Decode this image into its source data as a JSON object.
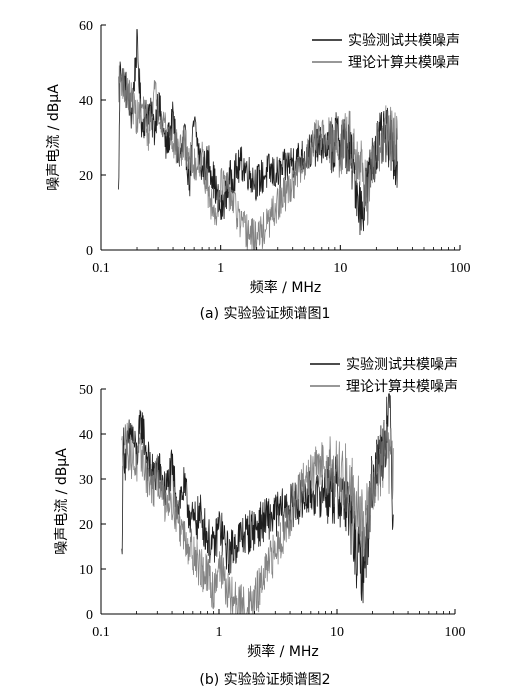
{
  "chart_data": [
    {
      "type": "line",
      "caption": "(a)  实验验证频谱图1",
      "xlabel": "频率 / MHz",
      "ylabel": "噪声电流 / dBμA",
      "xscale": "log",
      "xlim": [
        0.1,
        100
      ],
      "ylim": [
        0,
        60
      ],
      "xticks": [
        "0.1",
        "1",
        "10",
        "100"
      ],
      "yticks": [
        "0",
        "20",
        "40",
        "60"
      ],
      "legend_position": "top-right",
      "grid": false,
      "series": [
        {
          "name": "实验测试共模噪声",
          "color": "#111111",
          "x": [
            0.14,
            0.145,
            0.15,
            0.16,
            0.18,
            0.2,
            0.22,
            0.25,
            0.28,
            0.3,
            0.35,
            0.4,
            0.45,
            0.5,
            0.55,
            0.6,
            0.7,
            0.8,
            0.9,
            1.0,
            1.2,
            1.5,
            2.0,
            2.5,
            3.0,
            4.0,
            5.0,
            6.0,
            7.0,
            8.0,
            10.0,
            12.0,
            15.0,
            17.0,
            20.0,
            25.0,
            30.0
          ],
          "y": [
            14,
            52,
            46,
            44,
            36,
            55,
            33,
            38,
            32,
            40,
            27,
            35,
            23,
            30,
            18,
            34,
            21,
            24,
            17,
            10,
            19,
            23,
            18,
            21,
            20,
            24,
            25,
            27,
            28,
            27,
            30,
            26,
            10,
            18,
            28,
            30,
            24
          ]
        },
        {
          "name": "理论计算共模噪声",
          "color": "#777777",
          "x": [
            0.14,
            0.15,
            0.16,
            0.18,
            0.2,
            0.22,
            0.25,
            0.28,
            0.3,
            0.35,
            0.4,
            0.45,
            0.5,
            0.6,
            0.7,
            0.8,
            0.9,
            1.0,
            1.2,
            1.5,
            1.8,
            2.0,
            2.5,
            3.0,
            4.0,
            5.0,
            6.0,
            7.0,
            8.0,
            10.0,
            12.0,
            15.0,
            17.0,
            20.0,
            25.0,
            30.0
          ],
          "y": [
            44,
            46,
            42,
            40,
            35,
            38,
            31,
            42,
            38,
            33,
            29,
            26,
            28,
            22,
            25,
            14,
            9,
            18,
            15,
            6,
            4,
            3,
            7,
            12,
            18,
            23,
            29,
            32,
            28,
            27,
            30,
            22,
            14,
            26,
            32,
            28
          ]
        }
      ]
    },
    {
      "type": "line",
      "caption": "(b)  实验验证频谱图2",
      "xlabel": "频率 / MHz",
      "ylabel": "噪声电流 / dBμA",
      "xscale": "log",
      "xlim": [
        0.1,
        100
      ],
      "ylim": [
        0,
        50
      ],
      "xticks": [
        "0.1",
        "1",
        "10",
        "100"
      ],
      "yticks": [
        "0",
        "10",
        "20",
        "30",
        "40",
        "50"
      ],
      "legend_position": "top-right",
      "grid": false,
      "series": [
        {
          "name": "实验测试共模噪声",
          "color": "#111111",
          "x": [
            0.15,
            0.155,
            0.16,
            0.18,
            0.2,
            0.22,
            0.25,
            0.28,
            0.3,
            0.35,
            0.4,
            0.45,
            0.5,
            0.6,
            0.7,
            0.8,
            0.9,
            1.0,
            1.2,
            1.5,
            2.0,
            2.5,
            3.0,
            4.0,
            5.0,
            6.0,
            7.0,
            8.0,
            10.0,
            12.0,
            15.0,
            17.0,
            20.0,
            25.0,
            28.0,
            30.0
          ],
          "y": [
            12,
            39,
            34,
            41,
            35,
            43,
            34,
            30,
            33,
            27,
            32,
            24,
            28,
            20,
            22,
            17,
            14,
            20,
            13,
            17,
            19,
            21,
            22,
            24,
            25,
            27,
            26,
            28,
            27,
            25,
            12,
            10,
            30,
            38,
            47,
            20
          ]
        },
        {
          "name": "理论计算共模噪声",
          "color": "#777777",
          "x": [
            0.15,
            0.16,
            0.18,
            0.2,
            0.22,
            0.25,
            0.28,
            0.3,
            0.35,
            0.4,
            0.45,
            0.5,
            0.6,
            0.7,
            0.8,
            0.9,
            1.0,
            1.2,
            1.5,
            1.8,
            2.0,
            2.5,
            3.0,
            4.0,
            5.0,
            6.0,
            7.0,
            8.0,
            10.0,
            12.0,
            15.0,
            17.0,
            20.0,
            25.0,
            30.0
          ],
          "y": [
            36,
            39,
            35,
            33,
            36,
            30,
            28,
            31,
            25,
            26,
            21,
            18,
            14,
            10,
            8,
            5,
            12,
            4,
            2,
            1,
            3,
            9,
            14,
            22,
            28,
            31,
            33,
            34,
            32,
            30,
            25,
            18,
            28,
            36,
            33
          ]
        }
      ]
    }
  ]
}
